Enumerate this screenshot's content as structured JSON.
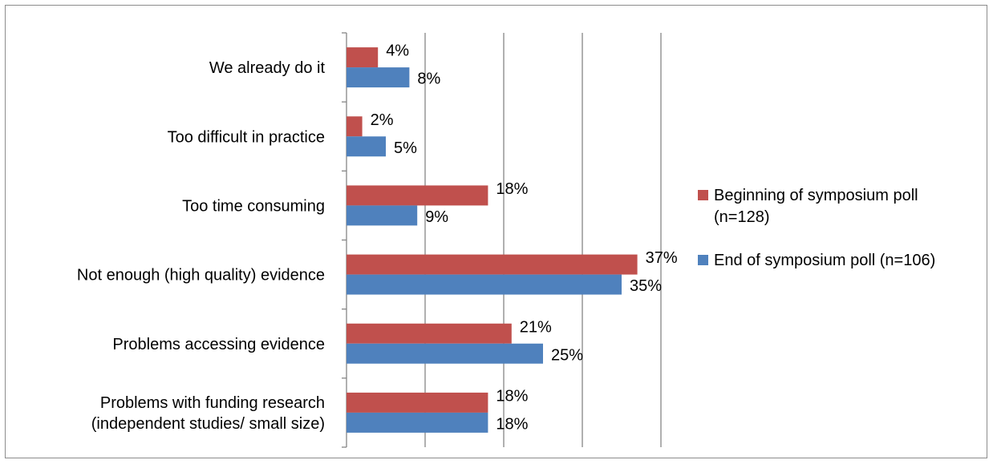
{
  "chart_data": {
    "type": "bar",
    "orientation": "horizontal",
    "categories": [
      [
        "We already do it"
      ],
      [
        "Too difficult in practice"
      ],
      [
        "Too time consuming"
      ],
      [
        "Not enough (high quality) evidence"
      ],
      [
        "Problems accessing evidence"
      ],
      [
        "Problems with funding research",
        "(independent studies/ small size)"
      ]
    ],
    "series": [
      {
        "name": "Beginning of symposium poll (n=128)",
        "legend_lines": [
          "Beginning of symposium poll",
          "(n=128)"
        ],
        "color": "#c0504d",
        "values": [
          4,
          2,
          18,
          37,
          21,
          18
        ],
        "labels": [
          "4%",
          "2%",
          "18%",
          "37%",
          "21%",
          "18%"
        ]
      },
      {
        "name": "End of symposium poll (n=106)",
        "legend_lines": [
          "End of symposium poll (n=106)"
        ],
        "color": "#4f81bd",
        "values": [
          8,
          5,
          9,
          35,
          25,
          18
        ],
        "labels": [
          "8%",
          "5%",
          "9%",
          "35%",
          "25%",
          "18%"
        ]
      }
    ],
    "xlim": [
      0,
      40
    ],
    "gridlines": [
      10,
      20,
      30,
      40
    ],
    "grid": true,
    "legend_position": "right",
    "title": "",
    "xlabel": "",
    "ylabel": ""
  }
}
